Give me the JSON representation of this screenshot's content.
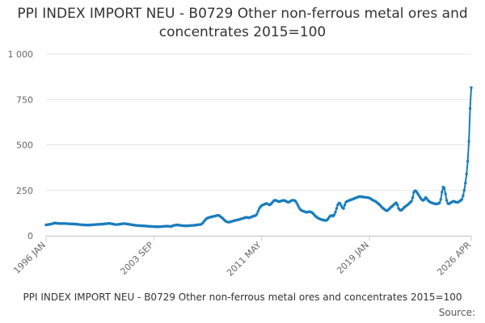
{
  "chart_data": {
    "type": "line",
    "title": "PPI INDEX IMPORT NEU - B0729 Other non-ferrous metal ores and concentrates 2015=100",
    "caption": "PPI INDEX IMPORT NEU - B0729 Other non-ferrous metal ores and concentrates 2015=100",
    "source": "Source:",
    "categories": [
      "1996 JAN",
      null,
      null,
      null,
      null,
      null,
      null,
      null,
      null,
      null,
      null,
      null,
      null,
      null,
      null,
      null,
      null,
      null,
      null,
      null,
      null,
      null,
      null,
      null,
      null,
      null,
      null,
      null,
      null,
      null,
      null,
      null,
      null,
      null,
      null,
      null,
      null,
      null,
      null,
      null,
      null,
      null,
      null,
      null,
      null,
      null,
      null,
      null,
      null,
      null,
      null,
      null,
      null,
      null,
      null,
      null,
      null,
      null,
      null,
      null,
      null,
      null,
      null,
      null,
      null,
      null,
      null,
      null,
      null,
      null,
      null,
      null,
      null,
      null,
      null,
      null,
      null,
      null,
      null,
      null,
      null,
      null,
      null,
      null,
      null,
      null,
      null,
      null,
      null,
      null,
      null,
      null,
      "2003 SEP",
      null,
      null,
      null,
      null,
      null,
      null,
      null,
      null,
      null,
      null,
      null,
      null,
      null,
      null,
      null,
      null,
      null,
      null,
      null,
      null,
      null,
      null,
      null,
      null,
      null,
      null,
      null,
      null,
      null,
      null,
      null,
      null,
      null,
      null,
      null,
      null,
      null,
      null,
      null,
      null,
      null,
      null,
      null,
      null,
      null,
      null,
      null,
      null,
      null,
      null,
      null,
      null,
      null,
      null,
      null,
      null,
      null,
      null,
      null,
      null,
      null,
      null,
      null,
      null,
      null,
      null,
      null,
      null,
      null,
      null,
      null,
      null,
      null,
      null,
      null,
      null,
      null,
      null,
      null,
      null,
      null,
      null,
      null,
      null,
      null,
      null,
      null,
      null,
      null,
      null,
      null,
      "2011 MAY",
      null,
      null,
      null,
      null,
      null,
      null,
      null,
      null,
      null,
      null,
      null,
      null,
      null,
      null,
      null,
      null,
      null,
      null,
      null,
      null,
      null,
      null,
      null,
      null,
      null,
      null,
      null,
      null,
      null,
      null,
      null,
      null,
      null,
      null,
      null,
      null,
      null,
      null,
      null,
      null,
      null,
      null,
      null,
      null,
      null,
      null,
      null,
      null,
      null,
      null,
      null,
      null,
      null,
      null,
      null,
      null,
      null,
      null,
      null,
      null,
      null,
      null,
      null,
      null,
      null,
      null,
      null,
      null,
      null,
      null,
      null,
      null,
      null,
      null,
      null,
      null,
      null,
      null,
      null,
      null,
      null,
      null,
      null,
      null,
      null,
      null,
      null,
      null,
      null,
      null,
      null,
      "2019 JAN",
      null,
      null,
      null,
      null,
      null,
      null,
      null,
      null,
      null,
      null,
      null,
      null,
      null,
      null,
      null,
      null,
      null,
      null,
      null,
      null,
      null,
      null,
      null,
      null,
      null,
      null,
      null,
      null,
      null,
      null,
      null,
      null,
      null,
      null,
      null,
      null,
      null,
      null,
      null,
      null,
      null,
      null,
      null,
      null,
      null,
      null,
      null,
      null,
      null,
      null,
      null,
      null,
      null,
      null,
      null,
      null,
      null,
      null,
      null,
      null,
      null,
      null,
      null,
      null,
      null,
      null,
      null,
      null,
      null,
      null,
      null,
      null,
      null,
      null,
      null,
      null,
      null,
      null,
      null,
      null,
      null,
      null,
      null,
      null,
      null,
      null,
      "2026 APR"
    ],
    "values": [
      60,
      61,
      62,
      63,
      64,
      66,
      68,
      70,
      70,
      69,
      68,
      68,
      68,
      67,
      67,
      68,
      68,
      67,
      67,
      66,
      66,
      66,
      65,
      65,
      65,
      64,
      64,
      63,
      62,
      62,
      61,
      60,
      60,
      60,
      59,
      59,
      59,
      59,
      60,
      60,
      61,
      61,
      62,
      62,
      63,
      63,
      63,
      64,
      64,
      65,
      66,
      66,
      67,
      68,
      68,
      67,
      66,
      65,
      63,
      62,
      62,
      62,
      63,
      64,
      65,
      66,
      67,
      67,
      66,
      65,
      64,
      63,
      62,
      61,
      60,
      59,
      58,
      57,
      57,
      56,
      56,
      55,
      55,
      55,
      54,
      54,
      53,
      53,
      52,
      52,
      52,
      51,
      51,
      50,
      50,
      50,
      50,
      50,
      51,
      51,
      52,
      52,
      53,
      53,
      53,
      52,
      52,
      51,
      55,
      57,
      58,
      59,
      60,
      59,
      58,
      57,
      56,
      56,
      55,
      55,
      55,
      55,
      56,
      56,
      57,
      57,
      58,
      58,
      59,
      60,
      61,
      62,
      62,
      66,
      72,
      80,
      88,
      95,
      98,
      100,
      102,
      104,
      105,
      107,
      108,
      110,
      112,
      113,
      110,
      105,
      100,
      95,
      88,
      82,
      78,
      76,
      75,
      76,
      78,
      80,
      82,
      84,
      85,
      87,
      88,
      90,
      92,
      94,
      96,
      98,
      100,
      102,
      100,
      99,
      100,
      103,
      106,
      108,
      110,
      112,
      120,
      135,
      150,
      160,
      165,
      170,
      172,
      175,
      178,
      176,
      172,
      170,
      175,
      182,
      190,
      195,
      195,
      193,
      190,
      188,
      190,
      192,
      194,
      195,
      193,
      190,
      186,
      185,
      188,
      192,
      195,
      196,
      194,
      190,
      180,
      168,
      155,
      145,
      140,
      137,
      135,
      132,
      130,
      130,
      132,
      133,
      131,
      128,
      122,
      115,
      108,
      103,
      98,
      95,
      92,
      90,
      88,
      86,
      85,
      84,
      88,
      95,
      105,
      110,
      112,
      108,
      115,
      130,
      150,
      170,
      180,
      178,
      165,
      155,
      150,
      170,
      185,
      190,
      192,
      195,
      198,
      200,
      202,
      205,
      208,
      210,
      212,
      215,
      216,
      215,
      214,
      213,
      212,
      212,
      211,
      210,
      208,
      205,
      200,
      196,
      193,
      190,
      186,
      180,
      175,
      170,
      162,
      155,
      150,
      145,
      140,
      138,
      142,
      148,
      155,
      160,
      165,
      172,
      178,
      182,
      170,
      150,
      142,
      140,
      145,
      150,
      158,
      162,
      168,
      172,
      178,
      185,
      190,
      210,
      240,
      248,
      245,
      235,
      225,
      215,
      205,
      198,
      195,
      200,
      210,
      205,
      195,
      190,
      185,
      182,
      180,
      178,
      176,
      175,
      176,
      178,
      182,
      200,
      240,
      268,
      262,
      230,
      195,
      178,
      176,
      180,
      184,
      188,
      190,
      188,
      185,
      184,
      186,
      190,
      195,
      200,
      220,
      250,
      290,
      340,
      410,
      520,
      700,
      815
    ],
    "color": "#1a7dbd",
    "ylim": [
      0,
      1000
    ],
    "yticks": [
      0,
      250,
      500,
      750,
      {
        "value": 1000,
        "label": "1 000"
      }
    ],
    "grid": true
  }
}
